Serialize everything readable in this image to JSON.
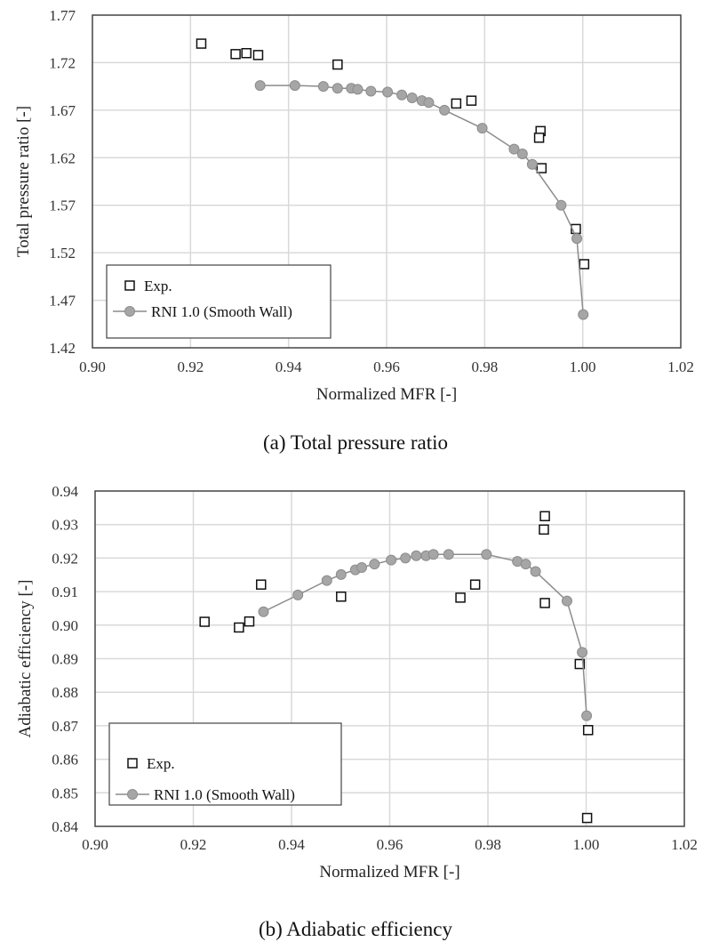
{
  "chart_data": [
    {
      "type": "scatter",
      "caption": "(a)  Total  pressure  ratio",
      "xlabel": "Normalized MFR [-]",
      "ylabel": "Total pressure ratio [-]",
      "xlim": [
        0.9,
        1.02
      ],
      "ylim": [
        1.42,
        1.77
      ],
      "xticks": [
        "0.90",
        "0.92",
        "0.94",
        "0.96",
        "0.98",
        "1.00",
        "1.02"
      ],
      "yticks": [
        "1.42",
        "1.47",
        "1.52",
        "1.57",
        "1.62",
        "1.67",
        "1.72",
        "1.77"
      ],
      "grid": true,
      "legend_position": "bottom-left",
      "series": [
        {
          "name": "Exp.",
          "marker": "open-square",
          "line": false,
          "color": "#000000",
          "x": [
            0.9222,
            0.9292,
            0.9314,
            0.9338,
            0.95,
            0.9742,
            0.9773,
            0.9914,
            0.9911,
            0.9916,
            0.9986,
            1.0003
          ],
          "y": [
            1.74,
            1.729,
            1.73,
            1.728,
            1.718,
            1.677,
            1.68,
            1.648,
            1.641,
            1.609,
            1.545,
            1.508
          ]
        },
        {
          "name": "RNI 1.0 (Smooth Wall)",
          "marker": "filled-circle",
          "line": true,
          "color": "#a6a6a6",
          "x": [
            0.9342,
            0.9413,
            0.9471,
            0.95,
            0.9528,
            0.9541,
            0.9568,
            0.9602,
            0.9631,
            0.9652,
            0.9672,
            0.9686,
            0.9718,
            0.9795,
            0.986,
            0.9877,
            0.9897,
            0.9956,
            0.9988,
            1.0001
          ],
          "y": [
            1.696,
            1.696,
            1.695,
            1.693,
            1.693,
            1.692,
            1.69,
            1.689,
            1.686,
            1.683,
            1.68,
            1.678,
            1.67,
            1.651,
            1.629,
            1.624,
            1.613,
            1.57,
            1.535,
            1.455
          ]
        }
      ]
    },
    {
      "type": "scatter",
      "caption": "(b)  Adiabatic  efficiency",
      "xlabel": "Normalized MFR [-]",
      "ylabel": "Adiabatic efficiency [-]",
      "xlim": [
        0.9,
        1.02
      ],
      "ylim": [
        0.84,
        0.94
      ],
      "xticks": [
        "0.90",
        "0.92",
        "0.94",
        "0.96",
        "0.98",
        "1.00",
        "1.02"
      ],
      "yticks": [
        "0.84",
        "0.85",
        "0.86",
        "0.87",
        "0.88",
        "0.89",
        "0.90",
        "0.91",
        "0.92",
        "0.93",
        "0.94"
      ],
      "grid": true,
      "legend_position": "bottom-left",
      "series": [
        {
          "name": "Exp.",
          "marker": "open-square",
          "line": false,
          "color": "#000000",
          "x": [
            0.9223,
            0.9293,
            0.9314,
            0.9338,
            0.9501,
            0.9774,
            0.9744,
            0.9916,
            0.9914,
            0.9916,
            0.9987,
            1.0004,
            1.0002
          ],
          "y": [
            0.901,
            0.8993,
            0.9011,
            0.9121,
            0.9085,
            0.9121,
            0.9082,
            0.9325,
            0.9285,
            0.9066,
            0.8884,
            0.8687,
            0.8425
          ]
        },
        {
          "name": "RNI 1.0 (Smooth Wall)",
          "marker": "filled-circle",
          "line": true,
          "color": "#a6a6a6",
          "x": [
            0.9343,
            0.9413,
            0.9472,
            0.9501,
            0.953,
            0.9543,
            0.9569,
            0.9603,
            0.9632,
            0.9654,
            0.9674,
            0.9689,
            0.972,
            0.9797,
            0.986,
            0.9877,
            0.9897,
            0.9961,
            0.9992,
            1.0001
          ],
          "y": [
            0.904,
            0.909,
            0.9133,
            0.9151,
            0.9165,
            0.9172,
            0.9182,
            0.9194,
            0.92,
            0.9207,
            0.9207,
            0.9211,
            0.9211,
            0.9211,
            0.919,
            0.9182,
            0.916,
            0.9072,
            0.8919,
            0.873
          ]
        }
      ]
    }
  ]
}
